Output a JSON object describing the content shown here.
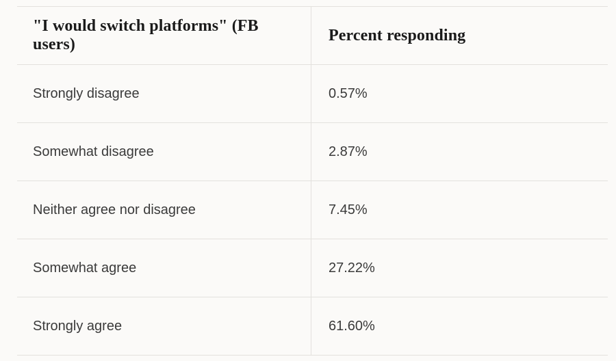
{
  "colors": {
    "background": "#fbfaf8",
    "grid_line": "#e3e1dd",
    "header_text": "#1b1b1b",
    "body_text": "#3a3a3a"
  },
  "table": {
    "header": {
      "question_column": "\"I would switch platforms\" (FB users)",
      "percent_column": "Percent responding"
    },
    "rows": [
      {
        "label": "Strongly disagree",
        "value": "0.57%"
      },
      {
        "label": "Somewhat disagree",
        "value": "2.87%"
      },
      {
        "label": "Neither agree nor disagree",
        "value": "7.45%"
      },
      {
        "label": "Somewhat agree",
        "value": "27.22%"
      },
      {
        "label": "Strongly agree",
        "value": "61.60%"
      }
    ]
  },
  "chart_data": {
    "type": "table",
    "title": "\"I would switch platforms\" (FB users)",
    "columns": [
      "\"I would switch platforms\" (FB users)",
      "Percent responding"
    ],
    "categories": [
      "Strongly disagree",
      "Somewhat disagree",
      "Neither agree nor disagree",
      "Somewhat agree",
      "Strongly agree"
    ],
    "values": [
      0.57,
      2.87,
      7.45,
      27.22,
      61.6
    ],
    "value_labels": [
      "0.57%",
      "2.87%",
      "7.45%",
      "27.22%",
      "61.60%"
    ],
    "layout": {
      "grid": "horizontal hairlines with single vertical column divider",
      "legend": "none"
    }
  }
}
